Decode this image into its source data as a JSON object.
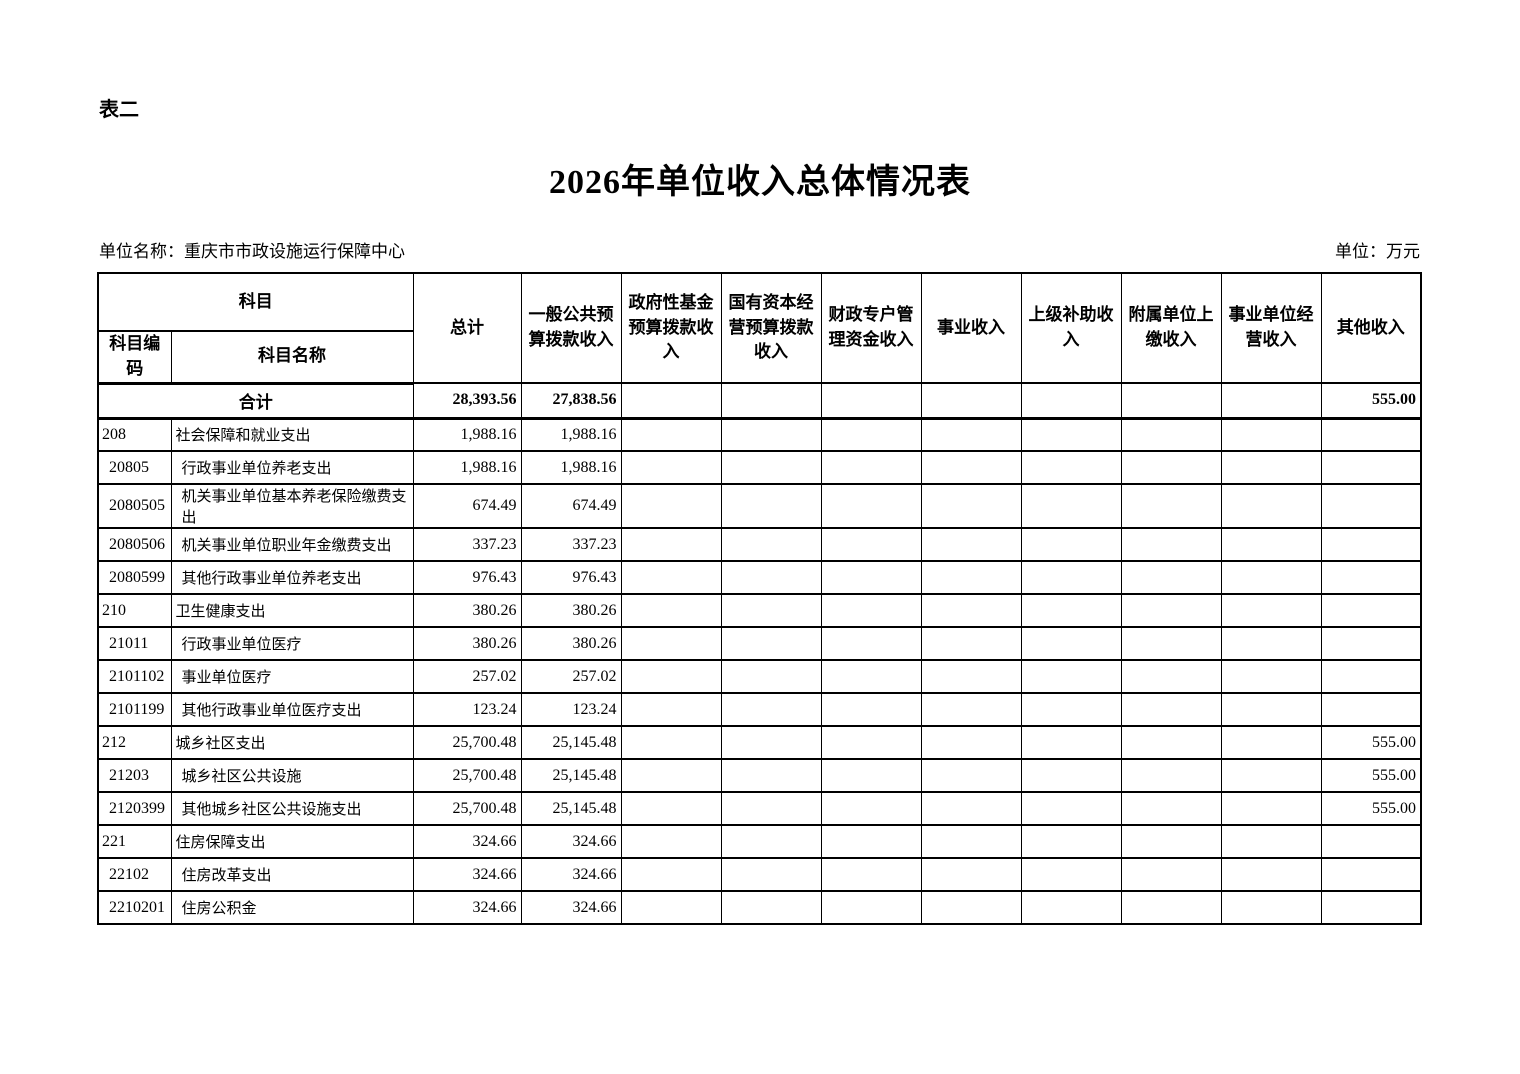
{
  "meta": {
    "table_tag": "表二",
    "title": "2026年单位收入总体情况表",
    "unit_name": "单位名称：重庆市市政设施运行保障中心",
    "unit_measure": "单位：万元"
  },
  "table": {
    "header": {
      "subject_group": "科目",
      "subject_code": "科目编码",
      "subject_name": "科目名称",
      "value_columns": [
        "总计",
        "一般公共预算拨款收入",
        "政府性基金预算拨款收入",
        "国有资本经营预算拨款收入",
        "财政专户管理资金收入",
        "事业收入",
        "上级补助收入",
        "附属单位上缴收入",
        "事业单位经营收入",
        "其他收入"
      ]
    },
    "total_row": {
      "label": "合计",
      "values": [
        "28,393.56",
        "27,838.56",
        "",
        "",
        "",
        "",
        "",
        "",
        "",
        "555.00"
      ]
    },
    "rows": [
      {
        "code": "208",
        "name": "社会保障和就业支出",
        "values": [
          "1,988.16",
          "1,988.16",
          "",
          "",
          "",
          "",
          "",
          "",
          "",
          ""
        ]
      },
      {
        "code": "20805",
        "name": "行政事业单位养老支出",
        "values": [
          "1,988.16",
          "1,988.16",
          "",
          "",
          "",
          "",
          "",
          "",
          "",
          ""
        ]
      },
      {
        "code": "2080505",
        "name": "机关事业单位基本养老保险缴费支出",
        "values": [
          "674.49",
          "674.49",
          "",
          "",
          "",
          "",
          "",
          "",
          "",
          ""
        ]
      },
      {
        "code": "2080506",
        "name": "机关事业单位职业年金缴费支出",
        "values": [
          "337.23",
          "337.23",
          "",
          "",
          "",
          "",
          "",
          "",
          "",
          ""
        ]
      },
      {
        "code": "2080599",
        "name": "其他行政事业单位养老支出",
        "values": [
          "976.43",
          "976.43",
          "",
          "",
          "",
          "",
          "",
          "",
          "",
          ""
        ]
      },
      {
        "code": "210",
        "name": "卫生健康支出",
        "values": [
          "380.26",
          "380.26",
          "",
          "",
          "",
          "",
          "",
          "",
          "",
          ""
        ]
      },
      {
        "code": "21011",
        "name": "行政事业单位医疗",
        "values": [
          "380.26",
          "380.26",
          "",
          "",
          "",
          "",
          "",
          "",
          "",
          ""
        ]
      },
      {
        "code": "2101102",
        "name": "事业单位医疗",
        "values": [
          "257.02",
          "257.02",
          "",
          "",
          "",
          "",
          "",
          "",
          "",
          ""
        ]
      },
      {
        "code": "2101199",
        "name": "其他行政事业单位医疗支出",
        "values": [
          "123.24",
          "123.24",
          "",
          "",
          "",
          "",
          "",
          "",
          "",
          ""
        ]
      },
      {
        "code": "212",
        "name": "城乡社区支出",
        "values": [
          "25,700.48",
          "25,145.48",
          "",
          "",
          "",
          "",
          "",
          "",
          "",
          "555.00"
        ]
      },
      {
        "code": "21203",
        "name": "城乡社区公共设施",
        "values": [
          "25,700.48",
          "25,145.48",
          "",
          "",
          "",
          "",
          "",
          "",
          "",
          "555.00"
        ]
      },
      {
        "code": "2120399",
        "name": "其他城乡社区公共设施支出",
        "values": [
          "25,700.48",
          "25,145.48",
          "",
          "",
          "",
          "",
          "",
          "",
          "",
          "555.00"
        ]
      },
      {
        "code": "221",
        "name": "住房保障支出",
        "values": [
          "324.66",
          "324.66",
          "",
          "",
          "",
          "",
          "",
          "",
          "",
          ""
        ]
      },
      {
        "code": "22102",
        "name": "住房改革支出",
        "values": [
          "324.66",
          "324.66",
          "",
          "",
          "",
          "",
          "",
          "",
          "",
          ""
        ]
      },
      {
        "code": "2210201",
        "name": "住房公积金",
        "values": [
          "324.66",
          "324.66",
          "",
          "",
          "",
          "",
          "",
          "",
          "",
          ""
        ]
      }
    ]
  }
}
